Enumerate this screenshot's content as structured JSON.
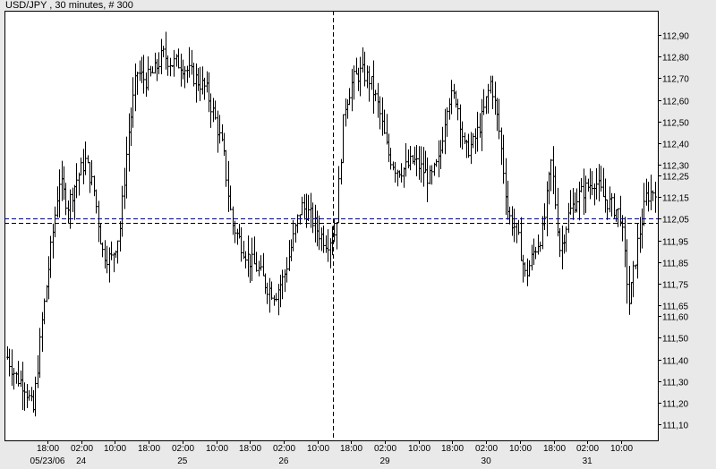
{
  "chart_data": {
    "type": "ohlc",
    "title": "USD/JPY , 30 minutes, # 300",
    "bar_count": 300,
    "ylim": [
      111.02,
      112.98
    ],
    "y_ticks": [
      112.9,
      112.8,
      112.7,
      112.6,
      112.5,
      112.4,
      112.3,
      112.25,
      112.15,
      112.05,
      111.95,
      111.85,
      111.75,
      111.65,
      111.6,
      111.5,
      111.4,
      111.3,
      111.2,
      111.1
    ],
    "y_tick_labels": [
      "112,90",
      "112,80",
      "112,70",
      "112,60",
      "112,50",
      "112,40",
      "112,30",
      "112,25",
      "112,15",
      "112,05",
      "111,95",
      "111,85",
      "111,75",
      "111,65",
      "111,60",
      "111,50",
      "111,40",
      "111,30",
      "111,20",
      "111,10"
    ],
    "highlight_tick": "112,05",
    "highlight_color": "#00008b",
    "x_time_labels": [
      "18:00",
      "02:00",
      "10:00",
      "18:00",
      "02:00",
      "10:00",
      "18:00",
      "02:00",
      "10:00",
      "18:00",
      "02:00",
      "10:00",
      "18:00",
      "02:00",
      "10:00",
      "18:00",
      "02:00",
      "10:00"
    ],
    "x_date_labels": [
      {
        "label": "05/23/06",
        "at_tick": 0
      },
      {
        "label": "24",
        "at_tick": 1
      },
      {
        "label": "25",
        "at_tick": 4
      },
      {
        "label": "26",
        "at_tick": 7
      },
      {
        "label": "29",
        "at_tick": 10
      },
      {
        "label": "30",
        "at_tick": 13
      },
      {
        "label": "31",
        "at_tick": 16
      }
    ],
    "price_path": [
      111.41,
      111.32,
      111.28,
      111.16,
      111.57,
      111.9,
      112.23,
      112.11,
      112.23,
      112.32,
      112.19,
      111.9,
      111.86,
      111.99,
      112.44,
      112.73,
      112.69,
      112.73,
      112.81,
      112.77,
      112.77,
      112.73,
      112.69,
      112.65,
      112.52,
      112.36,
      112.03,
      111.94,
      111.86,
      111.82,
      111.74,
      111.7,
      111.78,
      111.94,
      112.11,
      112.07,
      111.99,
      111.94,
      111.99,
      112.56,
      112.69,
      112.73,
      112.69,
      112.56,
      112.36,
      112.28,
      112.28,
      112.32,
      112.28,
      112.23,
      112.32,
      112.61,
      112.61,
      112.36,
      112.4,
      112.52,
      112.69,
      112.44,
      112.07,
      111.99,
      111.78,
      111.9,
      111.99,
      112.32,
      111.9,
      112.07,
      112.15,
      112.19,
      112.23,
      112.15,
      112.11,
      112.07,
      111.66,
      111.94,
      112.15,
      112.19
    ],
    "reference_lines": [
      {
        "price": 112.05,
        "style": "dashed",
        "color": "#00008b"
      },
      {
        "price": 112.03,
        "style": "dashed",
        "color": "#000000"
      }
    ],
    "crosshair_time_tick": 9,
    "colors": {
      "bars": "#000000",
      "background": "#ffffff",
      "frame": "#e9e9e9"
    }
  }
}
